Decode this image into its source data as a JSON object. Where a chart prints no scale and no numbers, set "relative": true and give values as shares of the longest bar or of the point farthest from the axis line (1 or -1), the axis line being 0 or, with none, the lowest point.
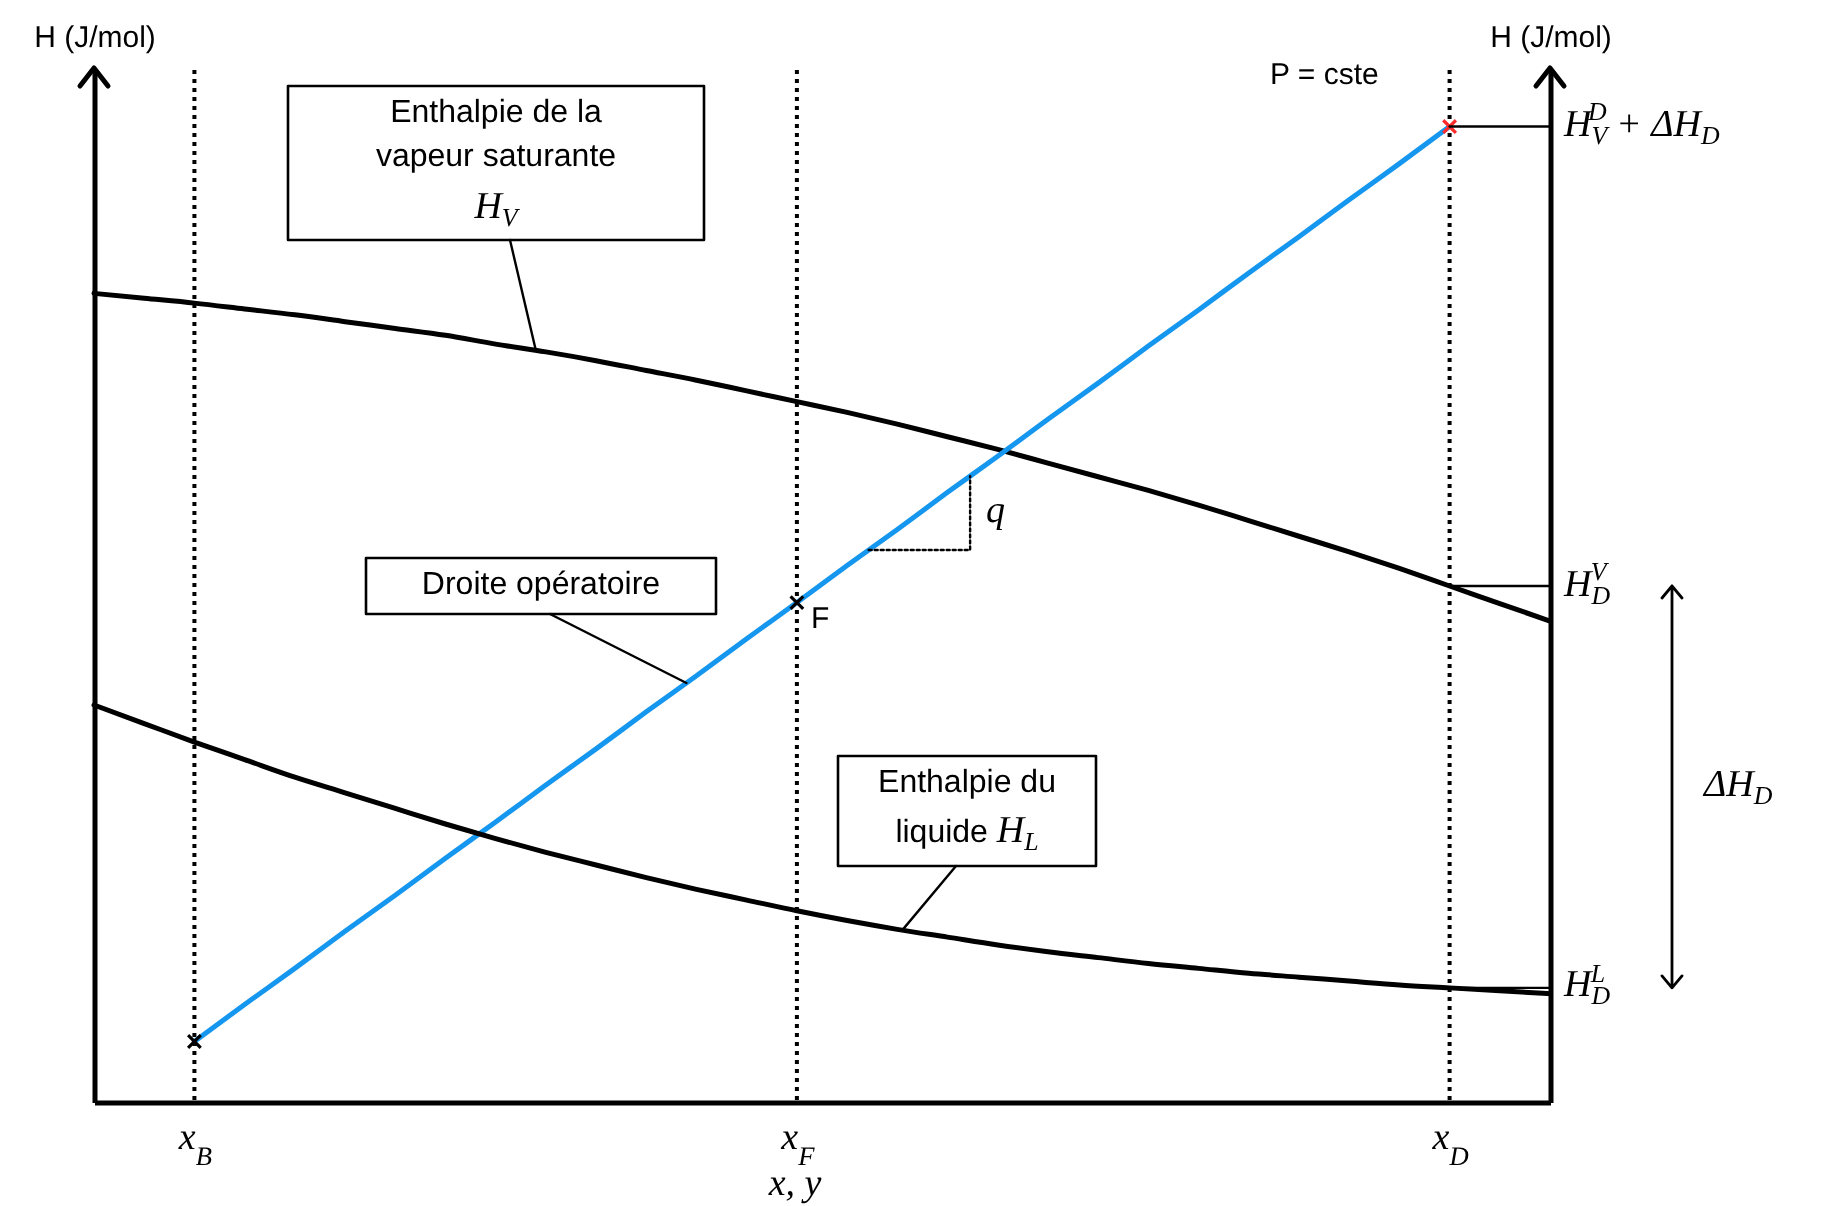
{
  "chart_data": {
    "type": "line",
    "relative": true,
    "xlabel": "x, y",
    "ylabel": "H (J/mol)",
    "y2label": "H (J/mol)",
    "categories": [
      null,
      null,
      "x$_{B}$",
      null,
      null,
      null,
      null,
      null,
      null,
      null,
      null,
      null,
      null,
      null,
      "x$_{F}$",
      null,
      null,
      null,
      null,
      null,
      null,
      null,
      null,
      null,
      null,
      null,
      null,
      "x$_{D}$",
      null,
      null
    ],
    "series": [
      {
        "name": "Enthalpie de la vapeur saturante H$_{V}$",
        "color": "#000000",
        "values": [
          0.829,
          0.824,
          0.819,
          0.813,
          0.807,
          0.8,
          0.793,
          0.786,
          0.777,
          0.769,
          0.76,
          0.75,
          0.74,
          0.729,
          0.718,
          0.707,
          0.695,
          0.682,
          0.669,
          0.655,
          0.641,
          0.627,
          0.612,
          0.596,
          0.58,
          0.564,
          0.547,
          0.529,
          0.511,
          0.493
        ]
      },
      {
        "name": "Droite opératoire",
        "color": "#1596ef",
        "values": [
          null,
          null,
          0.062,
          0.1,
          0.137,
          0.175,
          0.212,
          0.25,
          0.287,
          0.325,
          0.362,
          0.4,
          0.437,
          0.475,
          0.512,
          0.55,
          0.587,
          0.625,
          0.662,
          0.7,
          0.737,
          0.775,
          0.812,
          0.85,
          0.887,
          0.925,
          0.962,
          1,
          null,
          null
        ]
      },
      {
        "name": "Enthalpie du liquide H$_{L}$",
        "color": "#000000",
        "values": [
          0.407,
          0.388,
          0.369,
          0.351,
          0.333,
          0.317,
          0.301,
          0.285,
          0.27,
          0.256,
          0.243,
          0.23,
          0.218,
          0.207,
          0.196,
          0.186,
          0.177,
          0.169,
          0.161,
          0.154,
          0.148,
          0.142,
          0.137,
          0.132,
          0.128,
          0.124,
          0.12,
          0.117,
          0.114,
          0.111
        ]
      },
      {
        "type": "scatter",
        "marker": "cross",
        "color": "#000000",
        "values": [
          null,
          null,
          0.062,
          null,
          null,
          null,
          null,
          null,
          null,
          null,
          null,
          null,
          null,
          null,
          0.512,
          null,
          null,
          null,
          null,
          null,
          null,
          null,
          null,
          null,
          null,
          null,
          null,
          null,
          null,
          null
        ]
      },
      {
        "type": "scatter",
        "marker": "cross",
        "color": "#ff2a2a",
        "values": [
          null,
          null,
          null,
          null,
          null,
          null,
          null,
          null,
          null,
          null,
          null,
          null,
          null,
          null,
          null,
          null,
          null,
          null,
          null,
          null,
          null,
          null,
          null,
          null,
          null,
          null,
          null,
          1,
          null,
          null
        ]
      }
    ],
    "ref_lines": [
      {
        "axis": "x",
        "value": "x$_{B}$",
        "color": "#000000",
        "line_style": "dotted"
      },
      {
        "axis": "x",
        "value": "x$_{F}$",
        "color": "#000000",
        "line_style": "dotted"
      },
      {
        "axis": "x",
        "value": "x$_{D}$",
        "color": "#000000",
        "line_style": "dotted"
      }
    ],
    "annotations": [
      "P = cste",
      "H$_{V}$$^{D}$ + ΔH$_{D}$",
      "H$_{D}$$^{V}$",
      "H$_{D}$$^{L}$",
      "ΔH$_{D}$",
      {
        "text": "F",
        "x": "x$_{F}$",
        "y": 0.512
      },
      "q"
    ]
  }
}
